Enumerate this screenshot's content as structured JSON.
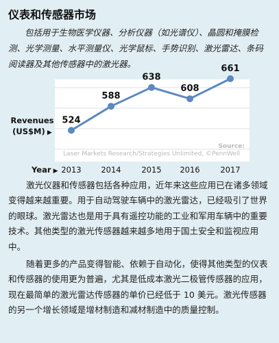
{
  "article": {
    "title": "仪表和传感器市场",
    "intro": "包括用于生物医学仪器、分析仪器（如光谱仪）、晶圆和掩膜检测、光学测量、水平测量仪、光学鼠标、手势识别、激光雷达、条码阅读器及其他传感器中的激光器。",
    "paragraphs": [
      "激光仪器和传感器包括各种应用，近年来这些应用已在诸多领域变得越来越重要。用于自动驾驶车辆中的激光雷达，已经吸引了世界的眼球。激光雷达也是用于具有遥控功能的工业和军用车辆中的重要技术。其他类型的激光传感器越来越多地用于国土安全和监视应用中。",
      "随着更多的产品变得智能、依赖于自动化，使得其他类型的仪表和传感器的使用更为普遍，尤其是低成本激光二极管传感器的应用，现在最简单的激光雷达传感器的单价已经低于 10 美元。激光传感器的另一个增长领域是增材制造和减材制造中的质量控制。"
    ]
  },
  "chart_data": {
    "type": "line",
    "x": [
      "2013",
      "2014",
      "2015",
      "2016",
      "2017"
    ],
    "values": [
      524,
      588,
      638,
      608,
      661
    ],
    "ylabel_line1": "Revenues",
    "ylabel_line2": "(US$M)",
    "xlabel": "Year",
    "source_label": "Source:",
    "source_text": "Laser Markets Research/Strategies Unlimited, ©PennWell",
    "grid": true,
    "colors": {
      "line": "#5b89c0",
      "grid": "#cfd6db",
      "background": "#ffffff",
      "page": "#e1eef3"
    }
  }
}
